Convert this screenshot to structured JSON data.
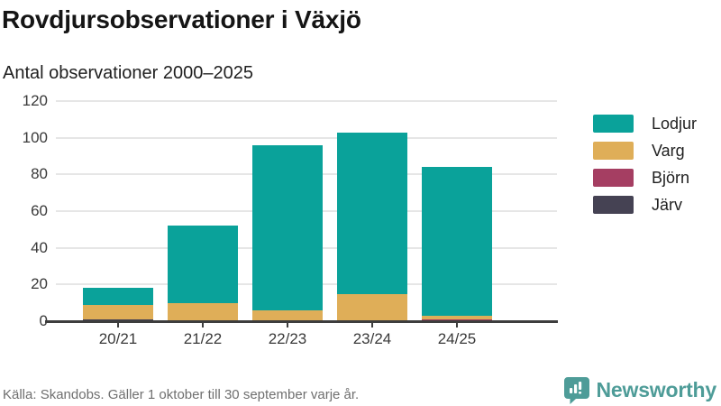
{
  "header": {
    "title": "Rovdjursobservationer i Växjö",
    "subtitle": "Antal observationer 2000–2025"
  },
  "chart_data": {
    "type": "bar",
    "stacked": true,
    "title": "Rovdjursobservationer i Växjö",
    "subtitle": "Antal observationer 2000–2025",
    "categories": [
      "20/21",
      "21/22",
      "22/23",
      "23/24",
      "24/25"
    ],
    "series": [
      {
        "name": "Lodjur",
        "color": "#0aa29a",
        "values": [
          9,
          42,
          90,
          88,
          81
        ]
      },
      {
        "name": "Varg",
        "color": "#dfae58",
        "values": [
          8,
          10,
          6,
          15,
          2
        ]
      },
      {
        "name": "Björn",
        "color": "#a53e62",
        "values": [
          0,
          0,
          0,
          0,
          1
        ]
      },
      {
        "name": "Järv",
        "color": "#454253",
        "values": [
          1,
          0,
          0,
          0,
          0
        ]
      }
    ],
    "ylim": [
      0,
      120
    ],
    "yticks": [
      0,
      20,
      40,
      60,
      80,
      100,
      120
    ],
    "grid": true,
    "legend_position": "right",
    "xlabel": "",
    "ylabel": ""
  },
  "footer": {
    "source": "Källa: Skandobs. Gäller 1 oktober till 30 september varje år.",
    "brand": "Newsworthy"
  },
  "colors": {
    "accent": "#0aa29a",
    "brand": "#4e9c98",
    "axis": "#3d3d3d",
    "grid": "#e6e6e6"
  }
}
